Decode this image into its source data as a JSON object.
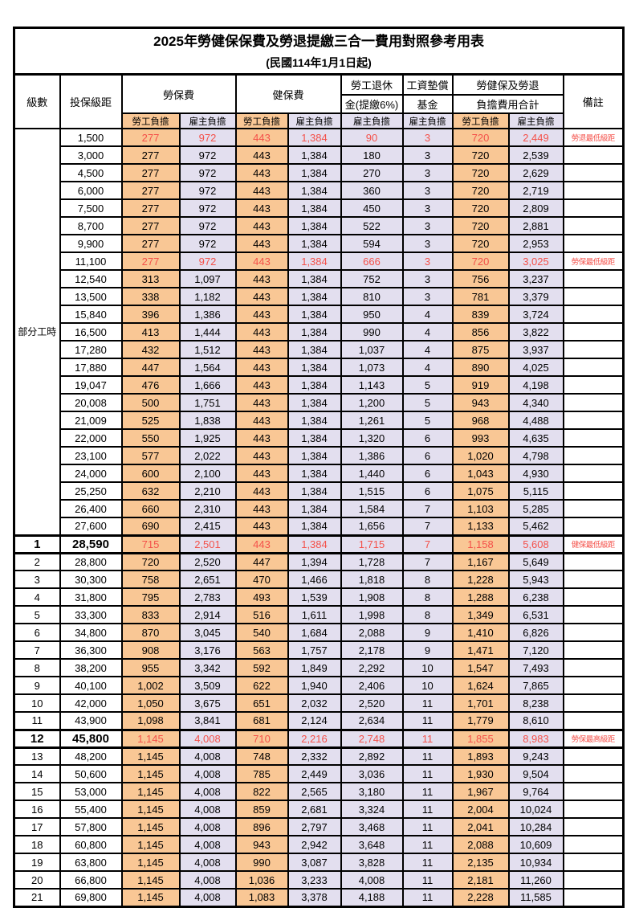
{
  "title": {
    "line1": "2025年勞健保保費及勞退提繳三合一費用對照參考用表",
    "line2": "(民國114年1月1日起)"
  },
  "header": {
    "level_label": "級數",
    "bracket_label": "投保級距",
    "labor_insurance_label": "勞保費",
    "health_insurance_label": "健保費",
    "pension_line1": "勞工退休",
    "pension_line2": "金(提繳6%)",
    "wage_fund_line1": "工資墊償",
    "wage_fund_line2": "基金",
    "total_line1": "勞健保及勞退",
    "total_line2": "負擔費用合計",
    "remark_label": "備註",
    "employee_label": "勞工負擔",
    "employer_label": "雇主負擔"
  },
  "part_time_label": "部分工時",
  "part_time_rowspan": 23,
  "colors": {
    "employee_bg": "#F9C795",
    "employer_bg": "#E3DFEF",
    "alert_text": "#F4514A"
  },
  "rows": [
    {
      "level": "",
      "bracket": "1,500",
      "values": [
        "277",
        "972",
        "443",
        "1,384",
        "90",
        "3",
        "720",
        "2,449"
      ],
      "remark": "勞退最低級距",
      "red": true
    },
    {
      "level": "",
      "bracket": "3,000",
      "values": [
        "277",
        "972",
        "443",
        "1,384",
        "180",
        "3",
        "720",
        "2,539"
      ]
    },
    {
      "level": "",
      "bracket": "4,500",
      "values": [
        "277",
        "972",
        "443",
        "1,384",
        "270",
        "3",
        "720",
        "2,629"
      ]
    },
    {
      "level": "",
      "bracket": "6,000",
      "values": [
        "277",
        "972",
        "443",
        "1,384",
        "360",
        "3",
        "720",
        "2,719"
      ]
    },
    {
      "level": "",
      "bracket": "7,500",
      "values": [
        "277",
        "972",
        "443",
        "1,384",
        "450",
        "3",
        "720",
        "2,809"
      ]
    },
    {
      "level": "",
      "bracket": "8,700",
      "values": [
        "277",
        "972",
        "443",
        "1,384",
        "522",
        "3",
        "720",
        "2,881"
      ]
    },
    {
      "level": "",
      "bracket": "9,900",
      "values": [
        "277",
        "972",
        "443",
        "1,384",
        "594",
        "3",
        "720",
        "2,953"
      ]
    },
    {
      "level": "",
      "bracket": "11,100",
      "values": [
        "277",
        "972",
        "443",
        "1,384",
        "666",
        "3",
        "720",
        "3,025"
      ],
      "remark": "勞保最低級距",
      "red": true
    },
    {
      "level": "",
      "bracket": "12,540",
      "values": [
        "313",
        "1,097",
        "443",
        "1,384",
        "752",
        "3",
        "756",
        "3,237"
      ]
    },
    {
      "level": "",
      "bracket": "13,500",
      "values": [
        "338",
        "1,182",
        "443",
        "1,384",
        "810",
        "3",
        "781",
        "3,379"
      ]
    },
    {
      "level": "",
      "bracket": "15,840",
      "values": [
        "396",
        "1,386",
        "443",
        "1,384",
        "950",
        "4",
        "839",
        "3,724"
      ]
    },
    {
      "level": "",
      "bracket": "16,500",
      "values": [
        "413",
        "1,444",
        "443",
        "1,384",
        "990",
        "4",
        "856",
        "3,822"
      ]
    },
    {
      "level": "",
      "bracket": "17,280",
      "values": [
        "432",
        "1,512",
        "443",
        "1,384",
        "1,037",
        "4",
        "875",
        "3,937"
      ]
    },
    {
      "level": "",
      "bracket": "17,880",
      "values": [
        "447",
        "1,564",
        "443",
        "1,384",
        "1,073",
        "4",
        "890",
        "4,025"
      ]
    },
    {
      "level": "",
      "bracket": "19,047",
      "values": [
        "476",
        "1,666",
        "443",
        "1,384",
        "1,143",
        "5",
        "919",
        "4,198"
      ]
    },
    {
      "level": "",
      "bracket": "20,008",
      "values": [
        "500",
        "1,751",
        "443",
        "1,384",
        "1,200",
        "5",
        "943",
        "4,340"
      ]
    },
    {
      "level": "",
      "bracket": "21,009",
      "values": [
        "525",
        "1,838",
        "443",
        "1,384",
        "1,261",
        "5",
        "968",
        "4,488"
      ]
    },
    {
      "level": "",
      "bracket": "22,000",
      "values": [
        "550",
        "1,925",
        "443",
        "1,384",
        "1,320",
        "6",
        "993",
        "4,635"
      ]
    },
    {
      "level": "",
      "bracket": "23,100",
      "values": [
        "577",
        "2,022",
        "443",
        "1,384",
        "1,386",
        "6",
        "1,020",
        "4,798"
      ]
    },
    {
      "level": "",
      "bracket": "24,000",
      "values": [
        "600",
        "2,100",
        "443",
        "1,384",
        "1,440",
        "6",
        "1,043",
        "4,930"
      ]
    },
    {
      "level": "",
      "bracket": "25,250",
      "values": [
        "632",
        "2,210",
        "443",
        "1,384",
        "1,515",
        "6",
        "1,075",
        "5,115"
      ]
    },
    {
      "level": "",
      "bracket": "26,400",
      "values": [
        "660",
        "2,310",
        "443",
        "1,384",
        "1,584",
        "7",
        "1,103",
        "5,285"
      ]
    },
    {
      "level": "",
      "bracket": "27,600",
      "values": [
        "690",
        "2,415",
        "443",
        "1,384",
        "1,656",
        "7",
        "1,133",
        "5,462"
      ]
    },
    {
      "level": "1",
      "bracket": "28,590",
      "values": [
        "715",
        "2,501",
        "443",
        "1,384",
        "1,715",
        "7",
        "1,158",
        "5,608"
      ],
      "remark": "健保最低級距",
      "red": true,
      "highlight": true
    },
    {
      "level": "2",
      "bracket": "28,800",
      "values": [
        "720",
        "2,520",
        "447",
        "1,394",
        "1,728",
        "7",
        "1,167",
        "5,649"
      ]
    },
    {
      "level": "3",
      "bracket": "30,300",
      "values": [
        "758",
        "2,651",
        "470",
        "1,466",
        "1,818",
        "8",
        "1,228",
        "5,943"
      ]
    },
    {
      "level": "4",
      "bracket": "31,800",
      "values": [
        "795",
        "2,783",
        "493",
        "1,539",
        "1,908",
        "8",
        "1,288",
        "6,238"
      ]
    },
    {
      "level": "5",
      "bracket": "33,300",
      "values": [
        "833",
        "2,914",
        "516",
        "1,611",
        "1,998",
        "8",
        "1,349",
        "6,531"
      ]
    },
    {
      "level": "6",
      "bracket": "34,800",
      "values": [
        "870",
        "3,045",
        "540",
        "1,684",
        "2,088",
        "9",
        "1,410",
        "6,826"
      ]
    },
    {
      "level": "7",
      "bracket": "36,300",
      "values": [
        "908",
        "3,176",
        "563",
        "1,757",
        "2,178",
        "9",
        "1,471",
        "7,120"
      ]
    },
    {
      "level": "8",
      "bracket": "38,200",
      "values": [
        "955",
        "3,342",
        "592",
        "1,849",
        "2,292",
        "10",
        "1,547",
        "7,493"
      ]
    },
    {
      "level": "9",
      "bracket": "40,100",
      "values": [
        "1,002",
        "3,509",
        "622",
        "1,940",
        "2,406",
        "10",
        "1,624",
        "7,865"
      ]
    },
    {
      "level": "10",
      "bracket": "42,000",
      "values": [
        "1,050",
        "3,675",
        "651",
        "2,032",
        "2,520",
        "11",
        "1,701",
        "8,238"
      ]
    },
    {
      "level": "11",
      "bracket": "43,900",
      "values": [
        "1,098",
        "3,841",
        "681",
        "2,124",
        "2,634",
        "11",
        "1,779",
        "8,610"
      ]
    },
    {
      "level": "12",
      "bracket": "45,800",
      "values": [
        "1,145",
        "4,008",
        "710",
        "2,216",
        "2,748",
        "11",
        "1,855",
        "8,983"
      ],
      "remark": "勞保最高級距",
      "red": true,
      "highlight": true
    },
    {
      "level": "13",
      "bracket": "48,200",
      "values": [
        "1,145",
        "4,008",
        "748",
        "2,332",
        "2,892",
        "11",
        "1,893",
        "9,243"
      ]
    },
    {
      "level": "14",
      "bracket": "50,600",
      "values": [
        "1,145",
        "4,008",
        "785",
        "2,449",
        "3,036",
        "11",
        "1,930",
        "9,504"
      ]
    },
    {
      "level": "15",
      "bracket": "53,000",
      "values": [
        "1,145",
        "4,008",
        "822",
        "2,565",
        "3,180",
        "11",
        "1,967",
        "9,764"
      ]
    },
    {
      "level": "16",
      "bracket": "55,400",
      "values": [
        "1,145",
        "4,008",
        "859",
        "2,681",
        "3,324",
        "11",
        "2,004",
        "10,024"
      ]
    },
    {
      "level": "17",
      "bracket": "57,800",
      "values": [
        "1,145",
        "4,008",
        "896",
        "2,797",
        "3,468",
        "11",
        "2,041",
        "10,284"
      ]
    },
    {
      "level": "18",
      "bracket": "60,800",
      "values": [
        "1,145",
        "4,008",
        "943",
        "2,942",
        "3,648",
        "11",
        "2,088",
        "10,609"
      ]
    },
    {
      "level": "19",
      "bracket": "63,800",
      "values": [
        "1,145",
        "4,008",
        "990",
        "3,087",
        "3,828",
        "11",
        "2,135",
        "10,934"
      ]
    },
    {
      "level": "20",
      "bracket": "66,800",
      "values": [
        "1,145",
        "4,008",
        "1,036",
        "3,233",
        "4,008",
        "11",
        "2,181",
        "11,260"
      ]
    },
    {
      "level": "21",
      "bracket": "69,800",
      "values": [
        "1,145",
        "4,008",
        "1,083",
        "3,378",
        "4,188",
        "11",
        "2,228",
        "11,585"
      ]
    }
  ]
}
